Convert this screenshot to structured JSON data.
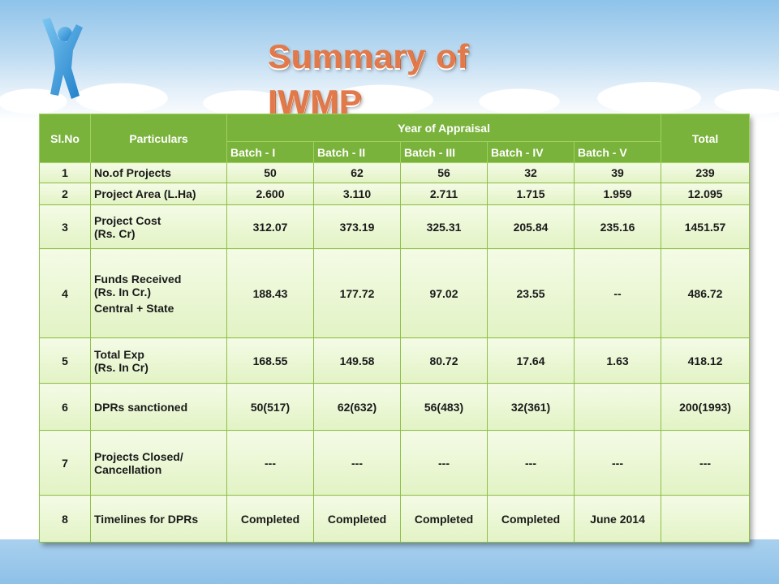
{
  "title": "Summary of IWMP",
  "icon": "person-figure-icon",
  "colors": {
    "header_bg": "#7ab33b",
    "cell_bg": "#e2f3c4",
    "title": "#e2794a"
  },
  "table": {
    "headers": {
      "slno": "Sl.No",
      "particulars": "Particulars",
      "year_of_appraisal": "Year of Appraisal",
      "total": "Total",
      "batches": [
        "Batch - I",
        "Batch - II",
        "Batch - III",
        "Batch - IV",
        "Batch - V"
      ]
    },
    "rows": [
      {
        "slno": "1",
        "lines": [
          "No.of Projects"
        ],
        "values": [
          "50",
          "62",
          "56",
          "32",
          "39"
        ],
        "total": "239"
      },
      {
        "slno": "2",
        "lines": [
          "Project Area (L.Ha)"
        ],
        "values": [
          "2.600",
          "3.110",
          "2.711",
          "1.715",
          "1.959"
        ],
        "total": "12.095"
      },
      {
        "slno": "3",
        "lines": [
          "Project Cost",
          "(Rs. Cr)"
        ],
        "values": [
          "312.07",
          "373.19",
          "325.31",
          "205.84",
          "235.16"
        ],
        "total": "1451.57"
      },
      {
        "slno": "4",
        "lines": [
          "Funds Received",
          "(Rs. In Cr.)",
          "Central + State"
        ],
        "values": [
          "188.43",
          "177.72",
          "97.02",
          "23.55",
          "--"
        ],
        "total": "486.72"
      },
      {
        "slno": "5",
        "lines": [
          "Total Exp",
          "(Rs. In Cr)"
        ],
        "values": [
          "168.55",
          "149.58",
          "80.72",
          "17.64",
          "1.63"
        ],
        "total": "418.12"
      },
      {
        "slno": "6",
        "lines": [
          "DPRs sanctioned"
        ],
        "values": [
          "50(517)",
          "62(632)",
          "56(483)",
          "32(361)",
          ""
        ],
        "total": "200(1993)"
      },
      {
        "slno": "7",
        "lines": [
          "Projects Closed/",
          "Cancellation"
        ],
        "values": [
          "---",
          "---",
          "---",
          "---",
          "---"
        ],
        "total": "---"
      },
      {
        "slno": "8",
        "lines": [
          "Timelines for DPRs"
        ],
        "values": [
          "Completed",
          "Completed",
          "Completed",
          "Completed",
          "June 2014"
        ],
        "total": ""
      }
    ]
  }
}
